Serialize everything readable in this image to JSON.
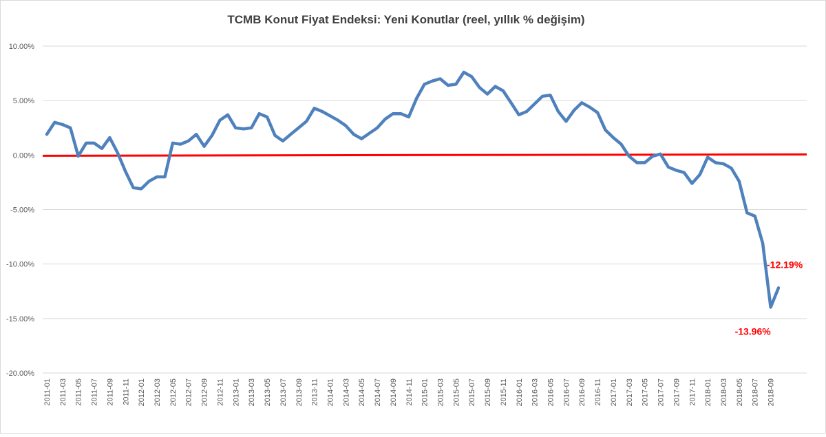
{
  "chart_data": {
    "type": "line",
    "title": "TCMB Konut Fiyat Endeksi: Yeni Konutlar (reel, yıllık % değişim)",
    "xlabel": "",
    "ylabel": "",
    "ylim": [
      -20,
      10
    ],
    "y_ticks": [
      10,
      5,
      0,
      -5,
      -10,
      -15,
      -20
    ],
    "y_tick_labels": [
      "10.00%",
      "5.00%",
      "0.00%",
      "-5.00%",
      "-10.00%",
      "-15.00%",
      "-20.00%"
    ],
    "grid": "horizontal",
    "legend": "none",
    "x_tick_labels": [
      "2011-01",
      "2011-03",
      "2011-05",
      "2011-07",
      "2011-09",
      "2011-11",
      "2012-01",
      "2012-03",
      "2012-05",
      "2012-07",
      "2012-09",
      "2012-11",
      "2013-01",
      "2013-03",
      "2013-05",
      "2013-07",
      "2013-09",
      "2013-11",
      "2014-01",
      "2014-03",
      "2014-05",
      "2014-07",
      "2014-09",
      "2014-11",
      "2015-01",
      "2015-03",
      "2015-05",
      "2015-07",
      "2015-09",
      "2015-11",
      "2016-01",
      "2016-03",
      "2016-05",
      "2016-07",
      "2016-09",
      "2016-11",
      "2017-01",
      "2017-03",
      "2017-05",
      "2017-07",
      "2017-09",
      "2017-11",
      "2018-01",
      "2018-03",
      "2018-05",
      "2018-07",
      "2018-09"
    ],
    "x": [
      "2011-01",
      "2011-02",
      "2011-03",
      "2011-04",
      "2011-05",
      "2011-06",
      "2011-07",
      "2011-08",
      "2011-09",
      "2011-10",
      "2011-11",
      "2011-12",
      "2012-01",
      "2012-02",
      "2012-03",
      "2012-04",
      "2012-05",
      "2012-06",
      "2012-07",
      "2012-08",
      "2012-09",
      "2012-10",
      "2012-11",
      "2012-12",
      "2013-01",
      "2013-02",
      "2013-03",
      "2013-04",
      "2013-05",
      "2013-06",
      "2013-07",
      "2013-08",
      "2013-09",
      "2013-10",
      "2013-11",
      "2013-12",
      "2014-01",
      "2014-02",
      "2014-03",
      "2014-04",
      "2014-05",
      "2014-06",
      "2014-07",
      "2014-08",
      "2014-09",
      "2014-10",
      "2014-11",
      "2014-12",
      "2015-01",
      "2015-02",
      "2015-03",
      "2015-04",
      "2015-05",
      "2015-06",
      "2015-07",
      "2015-08",
      "2015-09",
      "2015-10",
      "2015-11",
      "2015-12",
      "2016-01",
      "2016-02",
      "2016-03",
      "2016-04",
      "2016-05",
      "2016-06",
      "2016-07",
      "2016-08",
      "2016-09",
      "2016-10",
      "2016-11",
      "2016-12",
      "2017-01",
      "2017-02",
      "2017-03",
      "2017-04",
      "2017-05",
      "2017-06",
      "2017-07",
      "2017-08",
      "2017-09",
      "2017-10",
      "2017-11",
      "2017-12",
      "2018-01",
      "2018-02",
      "2018-03",
      "2018-04",
      "2018-05",
      "2018-06",
      "2018-07",
      "2018-08",
      "2018-09",
      "2018-10"
    ],
    "series": [
      {
        "color": "#4f81bd",
        "values": [
          1.9,
          3.0,
          2.8,
          2.5,
          -0.1,
          1.1,
          1.1,
          0.6,
          1.6,
          0.2,
          -1.5,
          -3.0,
          -3.1,
          -2.4,
          -2.0,
          -2.0,
          1.1,
          1.0,
          1.3,
          1.9,
          0.8,
          1.8,
          3.2,
          3.7,
          2.5,
          2.4,
          2.5,
          3.8,
          3.5,
          1.8,
          1.3,
          1.9,
          2.5,
          3.1,
          4.3,
          4.0,
          3.6,
          3.2,
          2.7,
          1.9,
          1.5,
          2.0,
          2.5,
          3.3,
          3.8,
          3.8,
          3.5,
          5.2,
          6.5,
          6.8,
          7.0,
          6.4,
          6.5,
          7.6,
          7.2,
          6.2,
          5.6,
          6.3,
          5.9,
          4.8,
          3.7,
          4.0,
          4.7,
          5.4,
          5.5,
          4.0,
          3.1,
          4.1,
          4.8,
          4.4,
          3.9,
          2.3,
          1.6,
          1.0,
          -0.1,
          -0.7,
          -0.7,
          -0.1,
          0.1,
          -1.1,
          -1.4,
          -1.6,
          -2.6,
          -1.8,
          -0.2,
          -0.7,
          -0.8,
          -1.2,
          -2.4,
          -5.3,
          -5.6,
          -8.1,
          -13.96,
          -12.19
        ]
      }
    ],
    "reference_line": {
      "value": 0,
      "color": "#ff0000"
    },
    "annotations": [
      {
        "index": 93,
        "text": "-12.19%",
        "color": "#ff0000"
      },
      {
        "index": 92,
        "text": "-13.96%",
        "color": "#ff0000"
      }
    ]
  }
}
